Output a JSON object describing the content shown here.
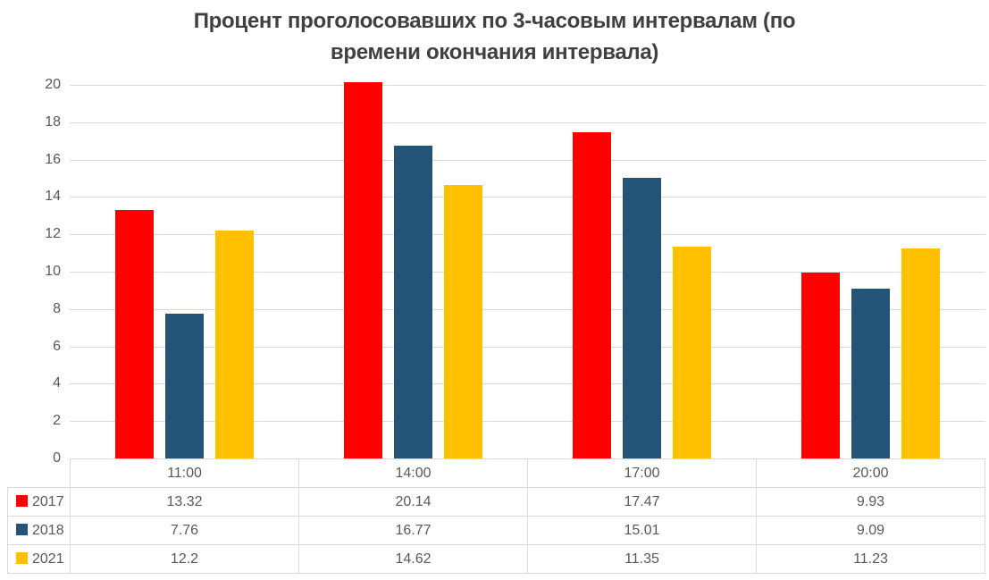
{
  "title_lines": [
    "Процент проголосовавших по 3-часовым интервалам (по",
    "времени окончания интервала)"
  ],
  "chart_data": {
    "type": "bar",
    "title": "Процент проголосовавших по 3-часовым интервалам (по времени окончания интервала)",
    "categories": [
      "11:00",
      "14:00",
      "17:00",
      "20:00"
    ],
    "series": [
      {
        "name": "2017",
        "color": "#ff0000",
        "values": [
          13.32,
          20.14,
          17.47,
          9.93
        ]
      },
      {
        "name": "2018",
        "color": "#235377",
        "values": [
          7.76,
          16.77,
          15.01,
          9.09
        ]
      },
      {
        "name": "2021",
        "color": "#ffc000",
        "values": [
          12.2,
          14.62,
          11.35,
          11.23
        ]
      }
    ],
    "xlabel": "",
    "ylabel": "",
    "ylim": [
      0,
      20
    ],
    "yticks": [
      0,
      2,
      4,
      6,
      8,
      10,
      12,
      14,
      16,
      18,
      20
    ],
    "grid": true,
    "legend_position": "table-left-keys",
    "data_table_shown": true,
    "colors": {
      "title_text": "#404040",
      "axis_text": "#595959",
      "gridline": "#d9d9d9",
      "table_border": "#d9d9d9",
      "background": "#ffffff"
    }
  }
}
